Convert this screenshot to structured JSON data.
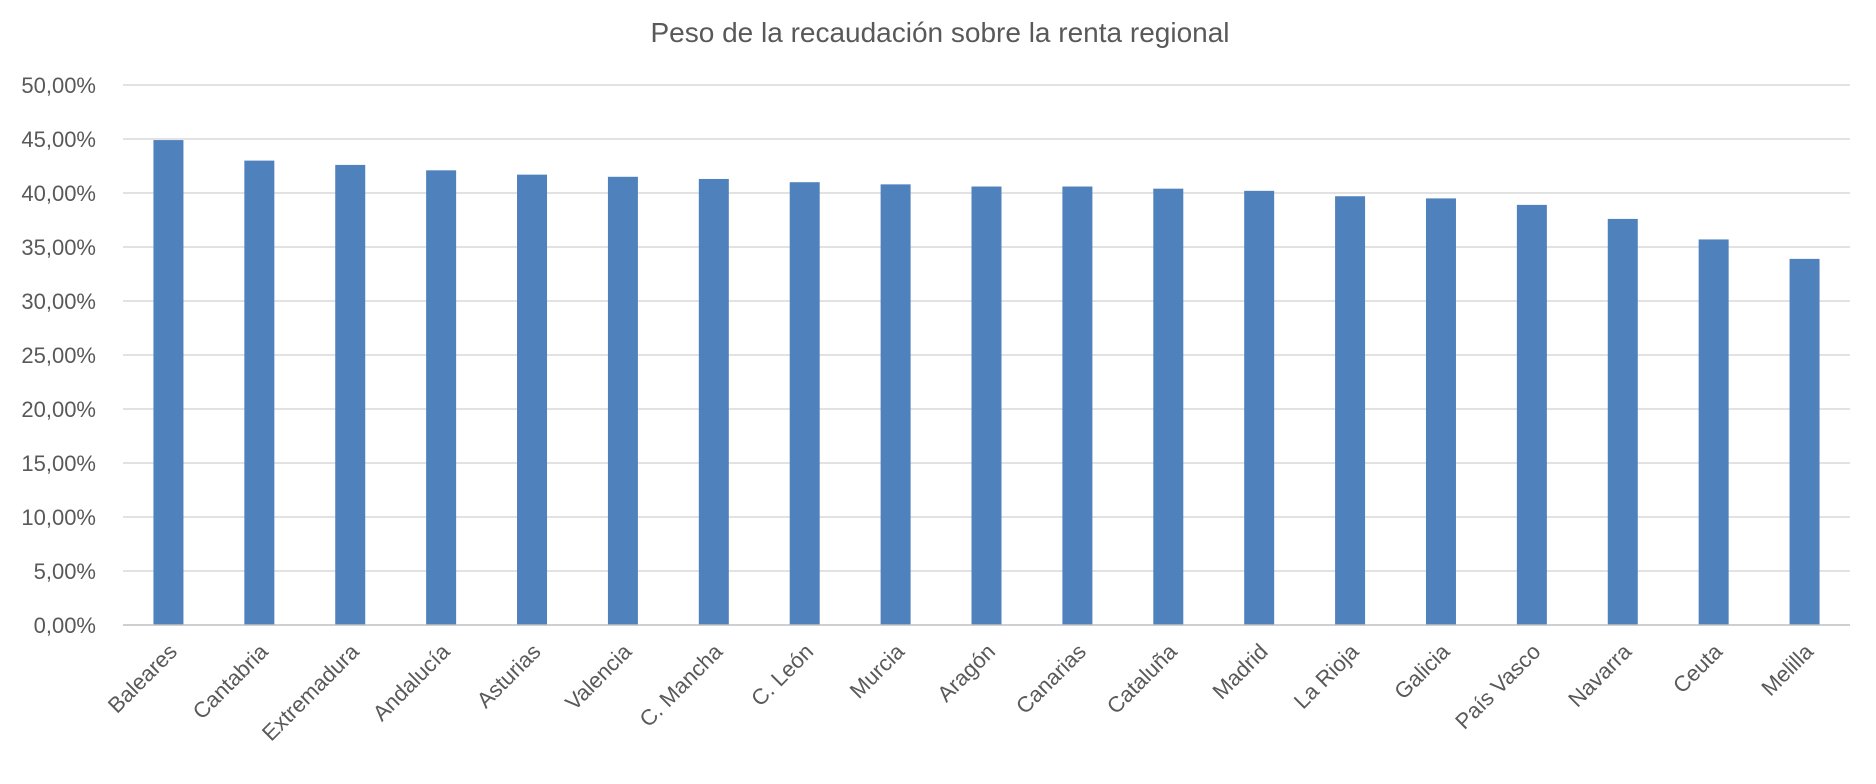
{
  "chart_data": {
    "type": "bar",
    "title": "Peso de la recaudación sobre la renta regional",
    "xlabel": "",
    "ylabel": "",
    "ylim": [
      0,
      50
    ],
    "yticks": [
      "0,00%",
      "5,00%",
      "10,00%",
      "15,00%",
      "20,00%",
      "25,00%",
      "30,00%",
      "35,00%",
      "40,00%",
      "45,00%",
      "50,00%"
    ],
    "grid": true,
    "bar_color": "#4f81bd",
    "categories": [
      "Baleares",
      "Cantabria",
      "Extremadura",
      "Andalucía",
      "Asturias",
      "Valencia",
      "C. Mancha",
      "C. León",
      "Murcia",
      "Aragón",
      "Canarias",
      "Cataluña",
      "Madrid",
      "La Rioja",
      "Galicia",
      "País Vasco",
      "Navarra",
      "Ceuta",
      "Melilla"
    ],
    "values": [
      44.9,
      43.0,
      42.6,
      42.1,
      41.7,
      41.5,
      41.3,
      41.0,
      40.8,
      40.6,
      40.6,
      40.4,
      40.2,
      39.7,
      39.5,
      38.9,
      37.6,
      35.7,
      33.9
    ]
  }
}
